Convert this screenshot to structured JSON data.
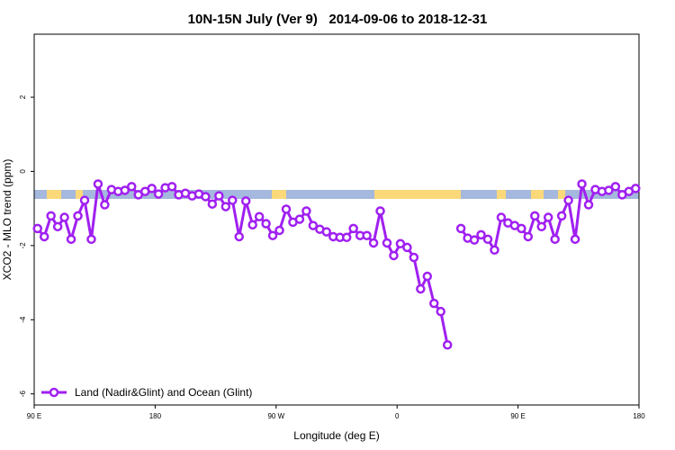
{
  "chart_data": {
    "type": "line",
    "title": "10N-15N July (Ver 9)   2014-09-06 to 2018-12-31",
    "x_label": "Longitude (deg E)",
    "y_label": "XCO2 - MLO trend (ppm)",
    "xlim": [
      90,
      540
    ],
    "ylim": [
      -6.3,
      3.7
    ],
    "xticks": [
      {
        "value": 90,
        "label": "90 E"
      },
      180,
      {
        "value": 270,
        "label": "90 W"
      },
      {
        "value": 360,
        "label": "0"
      },
      {
        "value": 450,
        "label": "90 E"
      },
      {
        "value": 540,
        "label": "180"
      }
    ],
    "yticks": [
      -6,
      -4,
      -2,
      0,
      2
    ],
    "legend": "bottom-left",
    "x": [
      92.5,
      97.5,
      102.5,
      107.5,
      112.5,
      117.5,
      122.5,
      127.5,
      132.5,
      137.5,
      142.5,
      147.5,
      152.5,
      157.5,
      162.5,
      167.5,
      172.5,
      177.5,
      182.5,
      187.5,
      192.5,
      197.5,
      202.5,
      207.5,
      212.5,
      217.5,
      222.5,
      227.5,
      232.5,
      237.5,
      242.5,
      247.5,
      252.5,
      257.5,
      262.5,
      267.5,
      272.5,
      277.5,
      282.5,
      287.5,
      292.5,
      297.5,
      302.5,
      307.5,
      312.5,
      317.5,
      322.5,
      327.5,
      332.5,
      337.5,
      342.5,
      347.5,
      352.5,
      357.5,
      362.5,
      367.5,
      372.5,
      377.5,
      382.5,
      387.5,
      392.5,
      397.5,
      402.5,
      407.5,
      412.5,
      417.5,
      422.5,
      427.5,
      432.5,
      437.5,
      442.5,
      447.5,
      452.5,
      457.5,
      462.5,
      467.5,
      472.5,
      477.5,
      482.5,
      487.5,
      492.5,
      497.5,
      502.5,
      507.5,
      512.5,
      517.5,
      522.5,
      527.5,
      532.5,
      537.5
    ],
    "series": [
      {
        "name": "Land (Nadir&Glint) and Ocean (Glint)",
        "color": "#a020f0",
        "values": [
          -1.54,
          -1.76,
          -1.2,
          -1.49,
          -1.24,
          -1.83,
          -1.2,
          -0.78,
          -1.83,
          -0.34,
          -0.9,
          -0.49,
          -0.54,
          -0.51,
          -0.41,
          -0.63,
          -0.54,
          -0.46,
          -0.61,
          -0.44,
          -0.41,
          -0.63,
          -0.59,
          -0.66,
          -0.61,
          -0.68,
          -0.88,
          -0.66,
          -0.95,
          -0.78,
          -1.76,
          -0.8,
          -1.44,
          -1.22,
          -1.41,
          -1.73,
          -1.59,
          -1.02,
          -1.37,
          -1.29,
          -1.07,
          -1.46,
          -1.56,
          -1.63,
          -1.76,
          -1.78,
          -1.78,
          -1.54,
          -1.73,
          -1.73,
          -1.93,
          -1.07,
          -1.93,
          -2.27,
          -1.95,
          -2.05,
          -2.32,
          -3.17,
          -2.83,
          -3.56,
          -3.78,
          -4.68,
          null,
          -1.54,
          -1.8,
          -1.85,
          -1.71,
          -1.83,
          -2.12,
          -1.24,
          -1.39,
          -1.46,
          -1.54,
          -1.76,
          -1.2,
          -1.49,
          -1.24,
          -1.83,
          -1.2,
          -0.78,
          -1.83,
          -0.34,
          -0.9,
          -0.49,
          -0.54,
          -0.51,
          -0.41,
          -0.63,
          -0.54,
          -0.46
        ]
      }
    ]
  }
}
